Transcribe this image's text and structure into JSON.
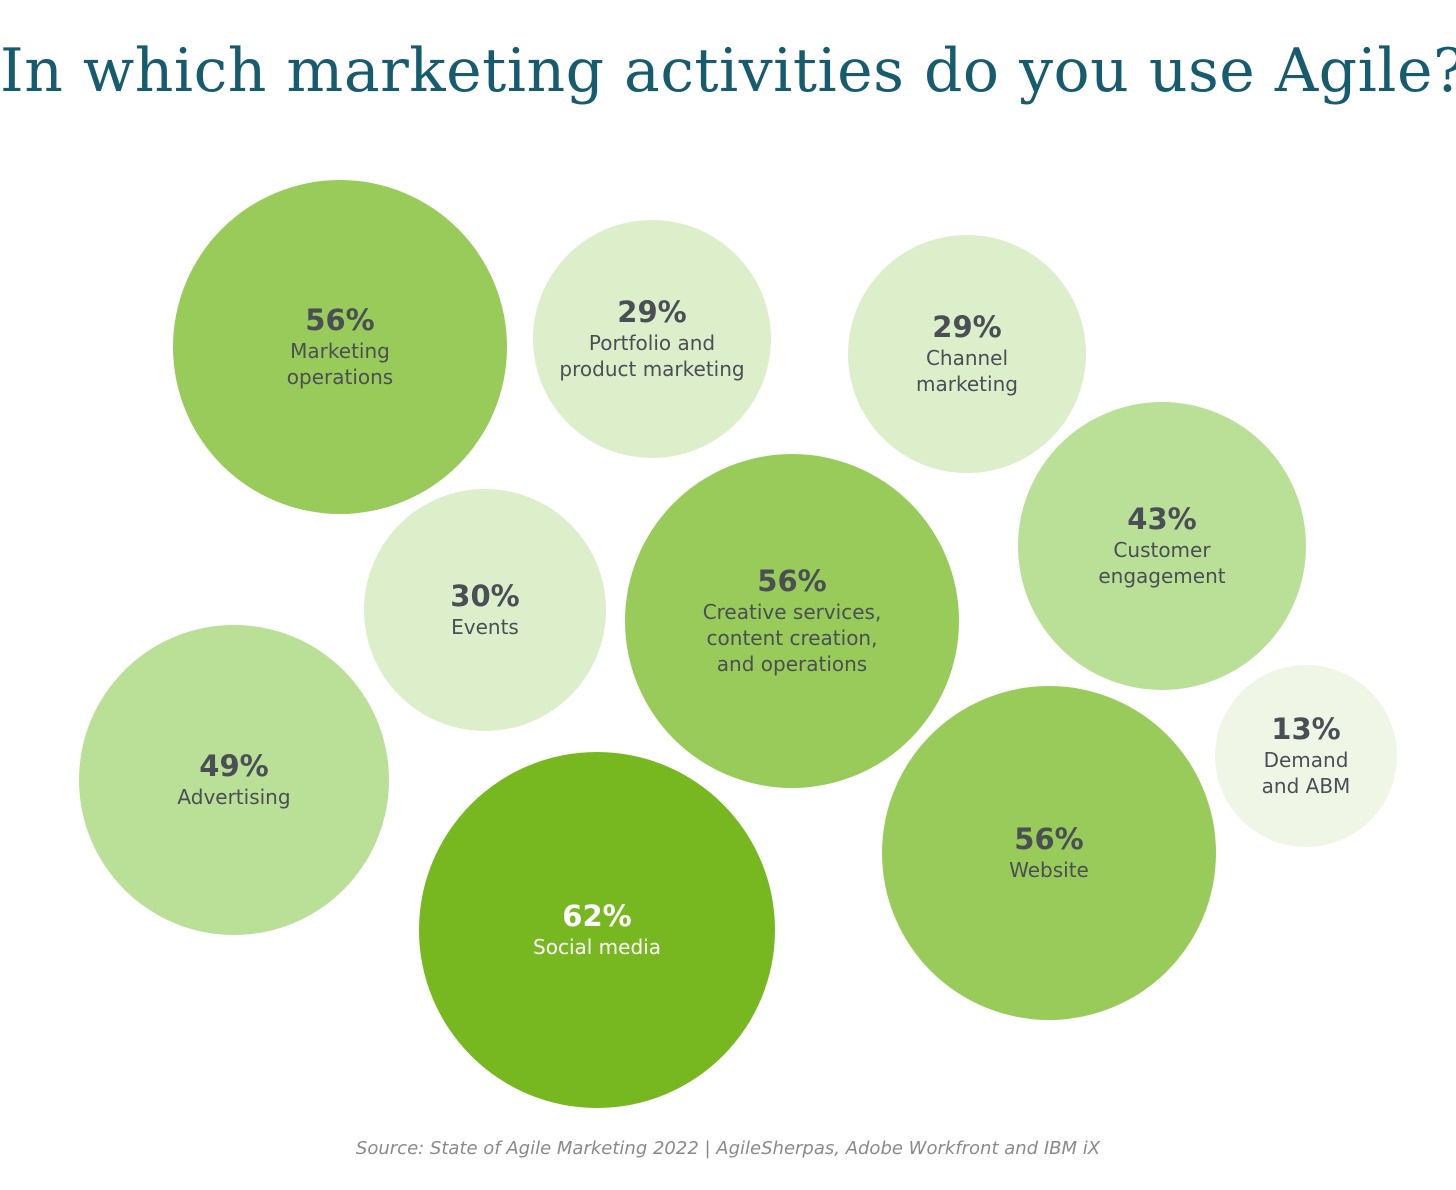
{
  "chart_data": {
    "type": "bubble",
    "title": "In which marketing activities do you use Agile?",
    "source": "Source: State of Agile Marketing 2022 | AgileSherpas, Adobe Workfront and IBM iX",
    "unit": "%",
    "items": [
      {
        "label_lines": [
          "Marketing",
          "operations"
        ],
        "value": 56,
        "value_text": "56%",
        "color": "#98cb59",
        "text_color": "#4a4f55"
      },
      {
        "label_lines": [
          "Portfolio and",
          "product marketing"
        ],
        "value": 29,
        "value_text": "29%",
        "color": "#ddeecb",
        "text_color": "#4a4f55"
      },
      {
        "label_lines": [
          "Channel",
          "marketing"
        ],
        "value": 29,
        "value_text": "29%",
        "color": "#ddeecb",
        "text_color": "#4a4f55"
      },
      {
        "label_lines": [
          "Customer",
          "engagement"
        ],
        "value": 43,
        "value_text": "43%",
        "color": "#badf96",
        "text_color": "#4a4f55"
      },
      {
        "label_lines": [
          "Events"
        ],
        "value": 30,
        "value_text": "30%",
        "color": "#ddeecb",
        "text_color": "#4a4f55"
      },
      {
        "label_lines": [
          "Creative services,",
          "content creation,",
          "and operations"
        ],
        "value": 56,
        "value_text": "56%",
        "color": "#98cb59",
        "text_color": "#4a4f55"
      },
      {
        "label_lines": [
          "Advertising"
        ],
        "value": 49,
        "value_text": "49%",
        "color": "#badf96",
        "text_color": "#4a4f55"
      },
      {
        "label_lines": [
          "Social media"
        ],
        "value": 62,
        "value_text": "62%",
        "color": "#77b820",
        "text_color": "#ffffff"
      },
      {
        "label_lines": [
          "Website"
        ],
        "value": 56,
        "value_text": "56%",
        "color": "#98cb59",
        "text_color": "#4a4f55"
      },
      {
        "label_lines": [
          "Demand",
          "and ABM"
        ],
        "value": 13,
        "value_text": "13%",
        "color": "#eff6e6",
        "text_color": "#4a4f55"
      }
    ]
  }
}
